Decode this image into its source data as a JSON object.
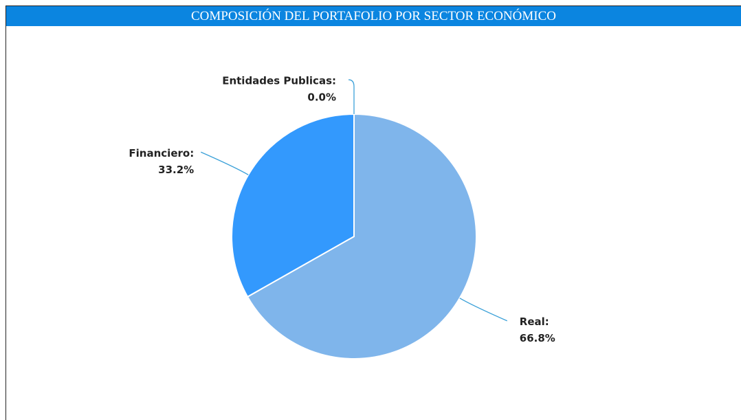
{
  "chart_data": {
    "type": "pie",
    "title": "COMPOSICIÓN DEL PORTAFOLIO POR SECTOR ECONÓMICO",
    "categories": [
      "Real:",
      "Financiero:",
      "Entidades Publicas:"
    ],
    "values": [
      66.8,
      33.2,
      0.0
    ],
    "value_labels": [
      "66.8%",
      "33.2%",
      "0.0%"
    ],
    "colors": [
      "#7fb5eb",
      "#3399fd",
      "#1a73d9"
    ]
  }
}
